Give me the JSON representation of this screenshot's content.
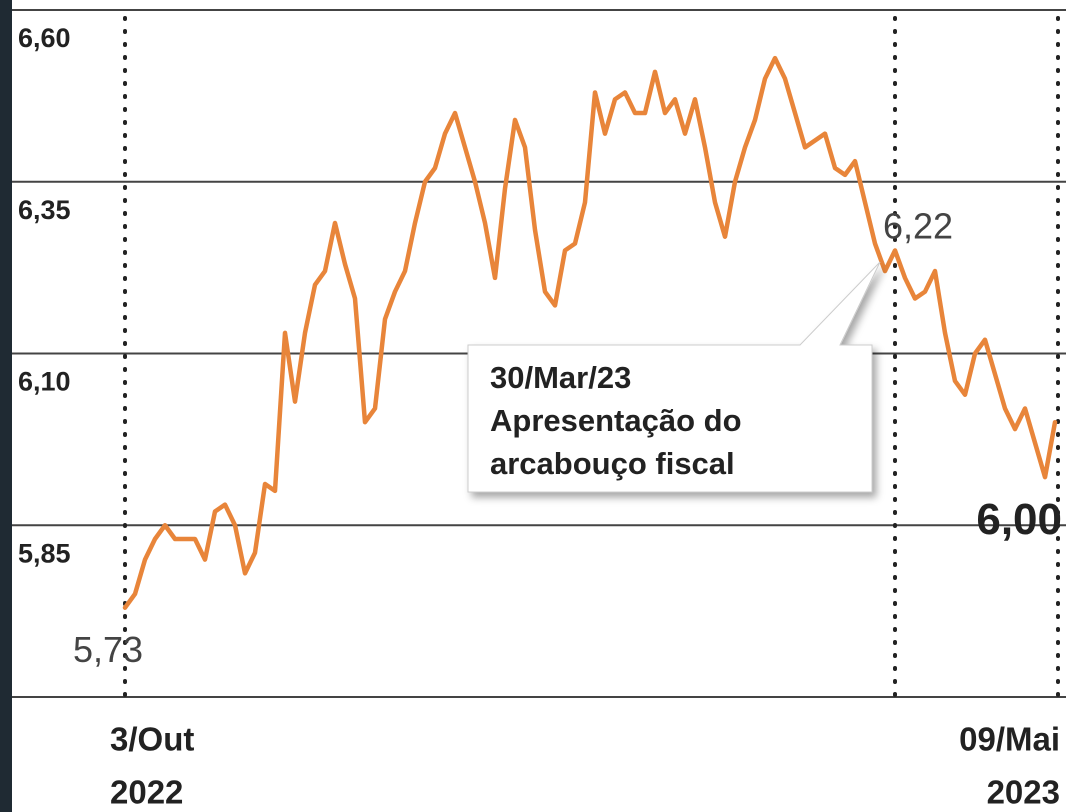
{
  "chart_data": {
    "type": "line",
    "categories": [
      "3/Out",
      null,
      null,
      null,
      null,
      null,
      null,
      null,
      null,
      null,
      null,
      null,
      null,
      null,
      null,
      null,
      null,
      null,
      null,
      null,
      null,
      null,
      null,
      null,
      null,
      null,
      null,
      null,
      null,
      null,
      null,
      null,
      null,
      null,
      null,
      null,
      null,
      null,
      null,
      null,
      null,
      null,
      null,
      null,
      null,
      null,
      null,
      null,
      null,
      null,
      null,
      null,
      null,
      null,
      null,
      null,
      null,
      null,
      null,
      null,
      null,
      null,
      null,
      null,
      null,
      null,
      null,
      null,
      null,
      null,
      null,
      null,
      null,
      null,
      null,
      null,
      null,
      "09/Mai",
      null,
      null,
      null,
      null,
      null,
      null,
      null,
      null,
      null,
      null,
      null,
      null,
      null,
      null,
      null,
      null
    ],
    "category_years": [
      "2022",
      "2023"
    ],
    "series": [
      {
        "color": "#e8853a",
        "values": [
          5.73,
          5.75,
          5.8,
          5.83,
          5.85,
          5.83,
          5.83,
          5.83,
          5.8,
          5.87,
          5.88,
          5.85,
          5.78,
          5.81,
          5.91,
          5.9,
          6.13,
          6.03,
          6.13,
          6.2,
          6.22,
          6.29,
          6.23,
          6.18,
          6.0,
          6.02,
          6.15,
          6.19,
          6.22,
          6.29,
          6.35,
          6.37,
          6.42,
          6.45,
          6.4,
          6.35,
          6.29,
          6.21,
          6.34,
          6.44,
          6.4,
          6.28,
          6.19,
          6.17,
          6.25,
          6.26,
          6.32,
          6.48,
          6.42,
          6.47,
          6.48,
          6.45,
          6.45,
          6.51,
          6.45,
          6.47,
          6.42,
          6.47,
          6.4,
          6.32,
          6.27,
          6.35,
          6.4,
          6.44,
          6.5,
          6.53,
          6.5,
          6.45,
          6.4,
          6.41,
          6.42,
          6.37,
          6.36,
          6.38,
          6.32,
          6.26,
          6.22,
          6.25,
          6.21,
          6.18,
          6.19,
          6.22,
          6.13,
          6.06,
          6.04,
          6.1,
          6.12,
          6.07,
          6.02,
          5.99,
          6.02,
          5.97,
          5.92,
          6.0
        ],
        "value_labels": [
          "5,73",
          null,
          null,
          null,
          null,
          null,
          null,
          null,
          null,
          null,
          null,
          null,
          null,
          null,
          null,
          null,
          null,
          null,
          null,
          null,
          null,
          null,
          null,
          null,
          null,
          null,
          null,
          null,
          null,
          null,
          null,
          null,
          null,
          null,
          null,
          null,
          null,
          null,
          null,
          null,
          null,
          null,
          null,
          null,
          null,
          null,
          null,
          null,
          null,
          null,
          null,
          null,
          null,
          null,
          null,
          null,
          null,
          null,
          null,
          null,
          null,
          null,
          null,
          null,
          null,
          null,
          null,
          null,
          null,
          null,
          null,
          null,
          null,
          null,
          null,
          null,
          "6,22",
          null,
          null,
          null,
          null,
          null,
          null,
          null,
          null,
          null,
          null,
          null,
          null,
          null,
          null,
          null,
          null,
          "6,00"
        ]
      }
    ],
    "annotation": {
      "lines": [
        "30/Mar/23",
        "Apresentação do",
        "arcabouço fiscal"
      ]
    },
    "ylim": [
      5.6,
      6.6
    ],
    "yticks": [
      {
        "value": 5.85,
        "label": "5,85"
      },
      {
        "value": 6.1,
        "label": "6,10"
      },
      {
        "value": 6.35,
        "label": "6,35"
      },
      {
        "value": 6.6,
        "label": "6,60"
      }
    ],
    "grid": true
  }
}
